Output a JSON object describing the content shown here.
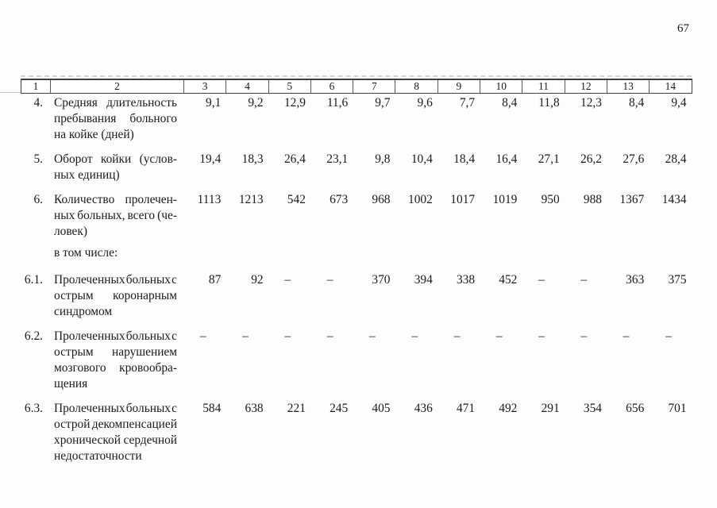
{
  "page": {
    "number": "67"
  },
  "table": {
    "header_cols": [
      "1",
      "2",
      "3",
      "4",
      "5",
      "6",
      "7",
      "8",
      "9",
      "10",
      "11",
      "12",
      "13",
      "14"
    ],
    "rows": [
      {
        "num": "4.",
        "label_lines": [
          "Средняя длительность",
          "пребывания больного",
          "на койке (дней)"
        ],
        "values": [
          "9,1",
          "9,2",
          "12,9",
          "11,6",
          "9,7",
          "9,6",
          "7,7",
          "8,4",
          "11,8",
          "12,3",
          "8,4",
          "9,4"
        ]
      },
      {
        "num": "5.",
        "label_lines": [
          "Оборот койки (услов-",
          "ных единиц)"
        ],
        "values": [
          "19,4",
          "18,3",
          "26,4",
          "23,1",
          "9,8",
          "10,4",
          "18,4",
          "16,4",
          "27,1",
          "26,2",
          "27,6",
          "28,4"
        ]
      },
      {
        "num": "6.",
        "label_lines": [
          "Количество пролечен-",
          "ных больных, всего (че-",
          "ловек)"
        ],
        "values": [
          "1113",
          "1213",
          "542",
          "673",
          "968",
          "1002",
          "1017",
          "1019",
          "950",
          "988",
          "1367",
          "1434"
        ]
      },
      {
        "num": "",
        "label_lines": [
          "в том числе:"
        ],
        "values": []
      },
      {
        "num": "6.1.",
        "label_lines": [
          "Пролеченных больных с",
          "острым коронарным",
          "синдромом"
        ],
        "values": [
          "87",
          "92",
          "–",
          "–",
          "370",
          "394",
          "338",
          "452",
          "–",
          "–",
          "363",
          "375"
        ]
      },
      {
        "num": "6.2.",
        "label_lines": [
          "Пролеченных больных с",
          "острым нарушением",
          "мозгового кровообра-",
          "щения"
        ],
        "values": [
          "–",
          "–",
          "–",
          "–",
          "–",
          "–",
          "–",
          "–",
          "–",
          "–",
          "–",
          "–"
        ]
      },
      {
        "num": "6.3.",
        "label_lines": [
          "Пролеченных больных с",
          "острой декомпенсацией",
          "хронической сердечной",
          "недостаточности"
        ],
        "values": [
          "584",
          "638",
          "221",
          "245",
          "405",
          "436",
          "471",
          "492",
          "291",
          "354",
          "656",
          "701"
        ]
      }
    ]
  }
}
